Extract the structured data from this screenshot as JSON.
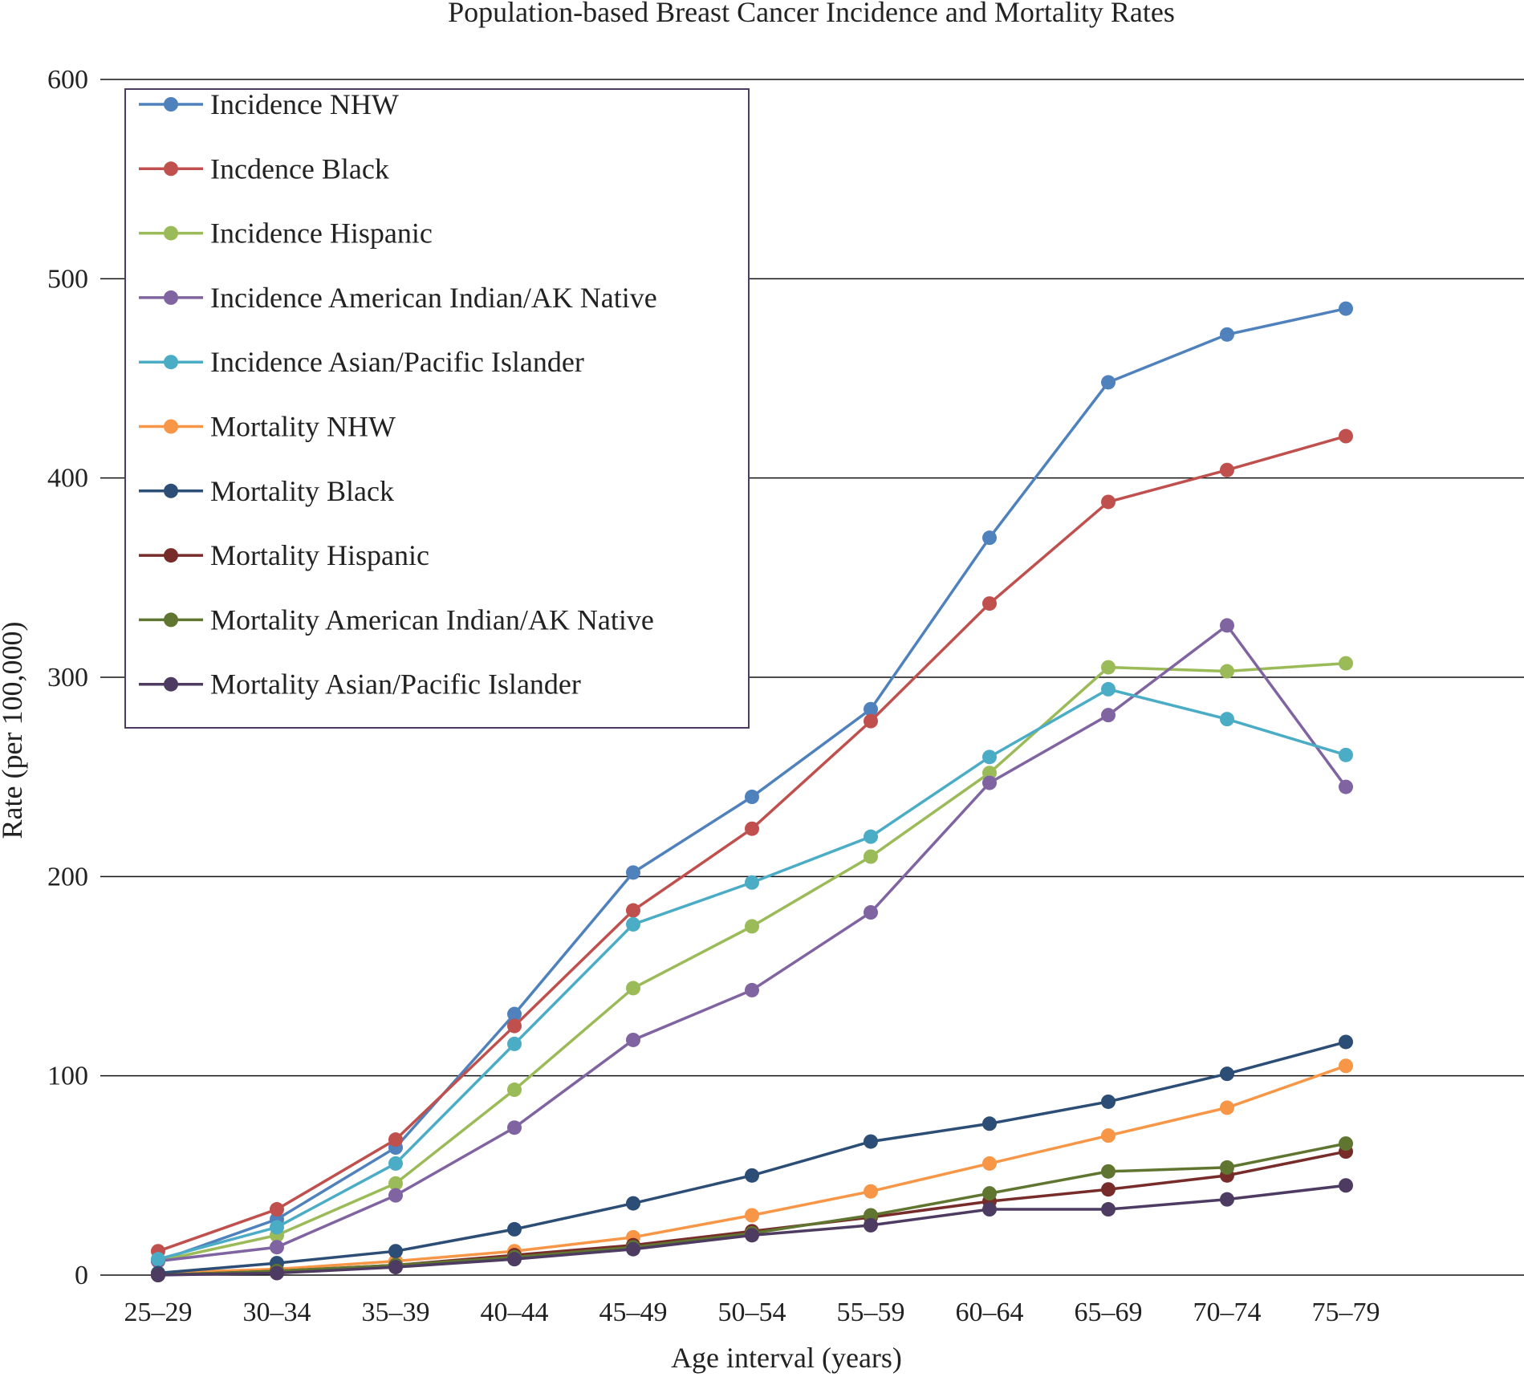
{
  "chart_data": {
    "type": "line",
    "title": "Population-based Breast Cancer Incidence and Mortality Rates",
    "xlabel": "Age interval (years)",
    "ylabel": "Rate (per 100,000)",
    "ylim": [
      0,
      600
    ],
    "yticks": [
      "0",
      "100",
      "200",
      "300",
      "400",
      "500",
      "600"
    ],
    "grid": true,
    "legend_position": "top-left",
    "categories": [
      "25–29",
      "30–34",
      "35–39",
      "40–44",
      "45–49",
      "50–54",
      "55–59",
      "60–64",
      "65–69",
      "70–74",
      "75–79"
    ],
    "series": [
      {
        "name": "Incidence NHW",
        "color": "#4f81bd",
        "values": [
          7,
          28,
          64,
          131,
          202,
          240,
          284,
          370,
          448,
          472,
          485
        ]
      },
      {
        "name": "Incdence Black",
        "color": "#c0504d",
        "values": [
          12,
          33,
          68,
          125,
          183,
          224,
          278,
          337,
          388,
          404,
          421
        ]
      },
      {
        "name": "Incidence Hispanic",
        "color": "#9bbb59",
        "values": [
          7,
          20,
          46,
          93,
          144,
          175,
          210,
          252,
          305,
          303,
          307
        ]
      },
      {
        "name": "Incidence American Indian/AK Native",
        "color": "#8064a2",
        "values": [
          7,
          14,
          40,
          74,
          118,
          143,
          182,
          247,
          281,
          326,
          245
        ]
      },
      {
        "name": "Incidence Asian/Pacific Islander",
        "color": "#4bacc6",
        "values": [
          8,
          24,
          56,
          116,
          176,
          197,
          220,
          260,
          294,
          279,
          261
        ]
      },
      {
        "name": "Mortality NHW",
        "color": "#f79646",
        "values": [
          1,
          3,
          7,
          12,
          19,
          30,
          42,
          56,
          70,
          84,
          105
        ]
      },
      {
        "name": "Mortality Black",
        "color": "#2c4d75",
        "values": [
          1,
          6,
          12,
          23,
          36,
          50,
          67,
          76,
          87,
          101,
          117
        ]
      },
      {
        "name": "Mortality Hispanic",
        "color": "#772c2a",
        "values": [
          0,
          2,
          5,
          10,
          15,
          22,
          29,
          37,
          43,
          50,
          62
        ]
      },
      {
        "name": "Mortality American Indian/AK Native",
        "color": "#5f7530",
        "values": [
          0,
          2,
          5,
          9,
          14,
          21,
          30,
          41,
          52,
          54,
          66
        ]
      },
      {
        "name": "Mortality Asian/Pacific Islander",
        "color": "#4d3b62",
        "values": [
          0,
          1,
          4,
          8,
          13,
          20,
          25,
          33,
          33,
          38,
          45
        ]
      }
    ]
  }
}
